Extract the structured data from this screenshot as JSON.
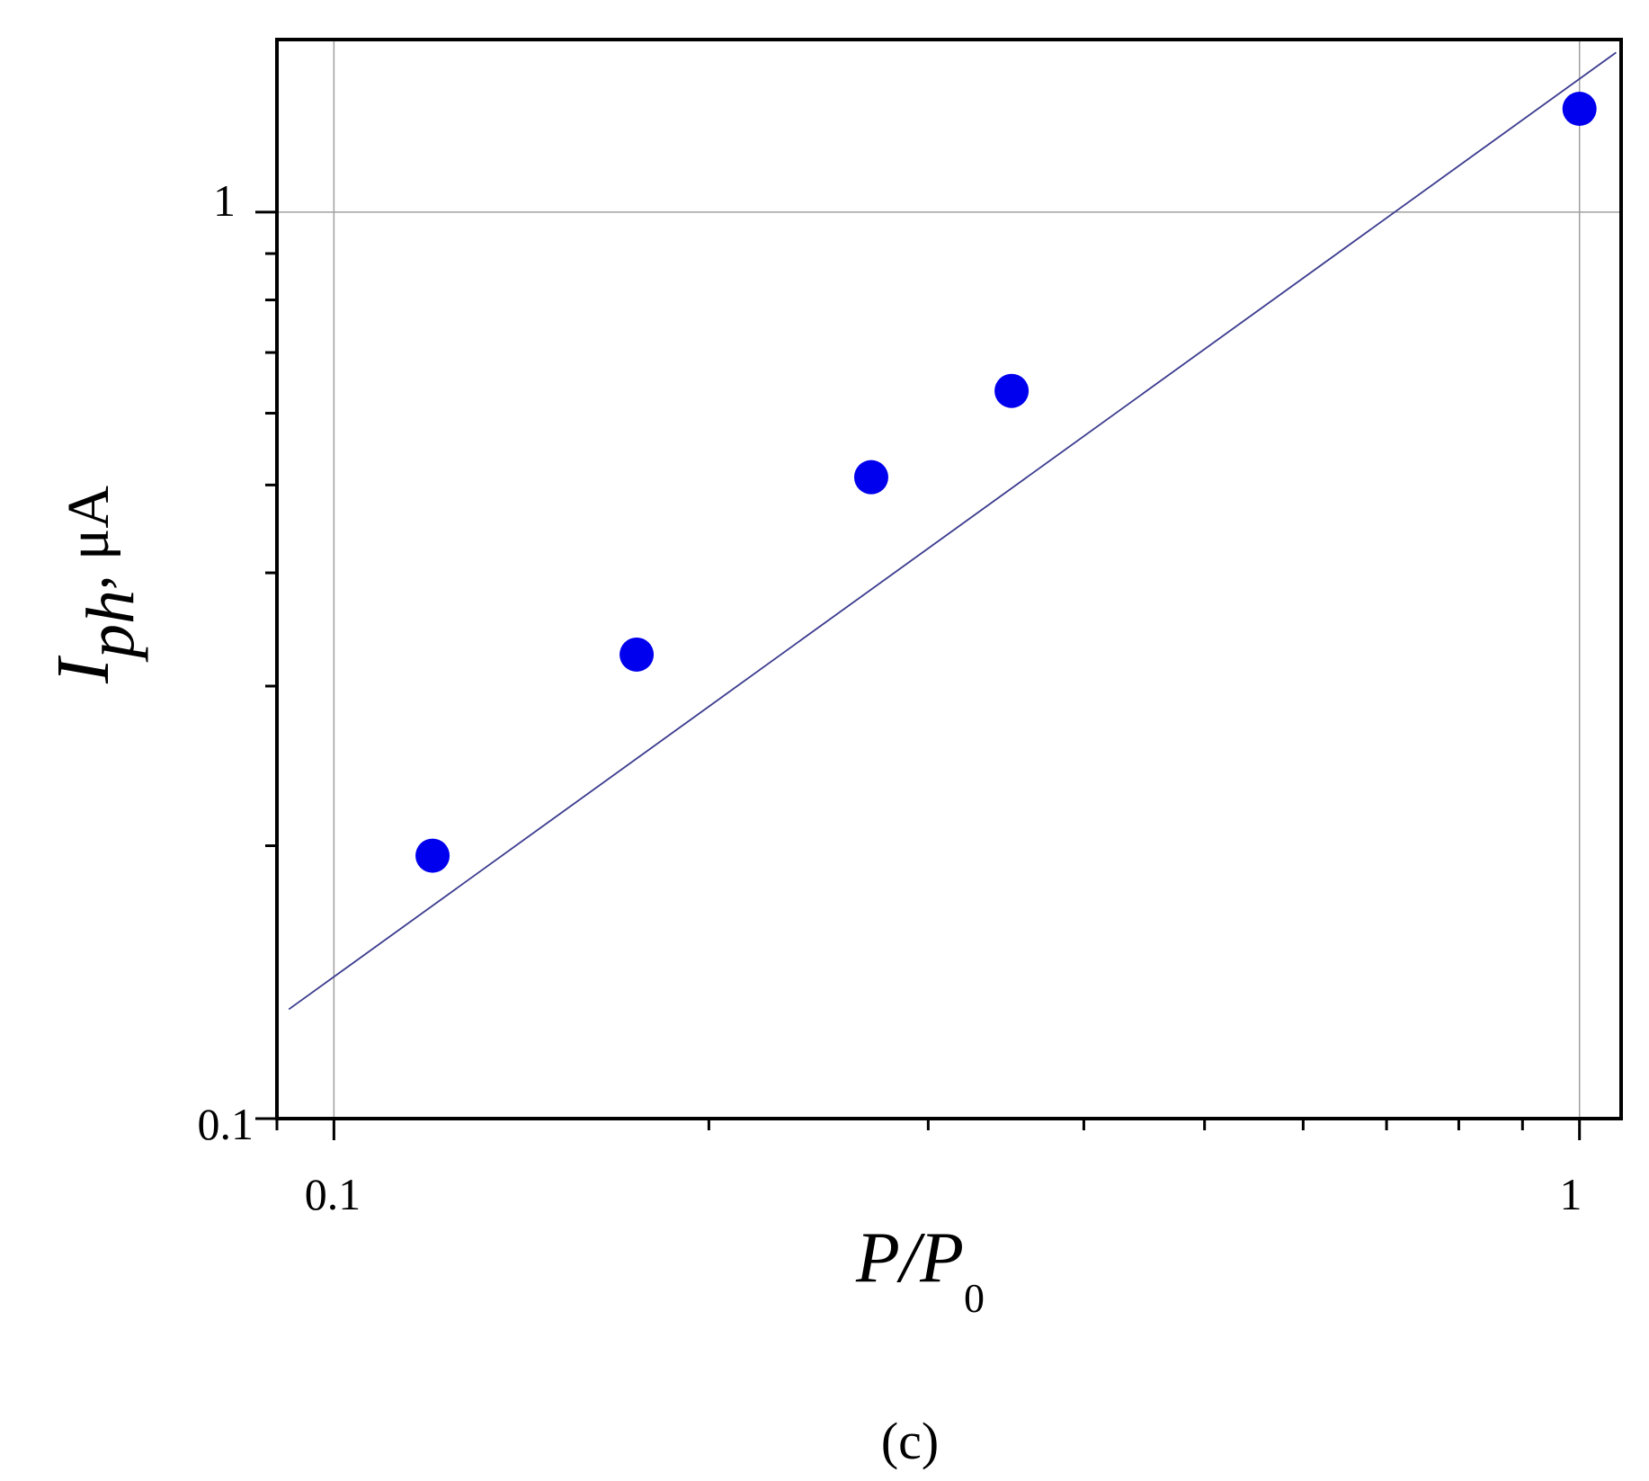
{
  "chart_data": {
    "type": "scatter",
    "x_scale": "log",
    "y_scale": "log",
    "xlim": [
      0.09,
      1.08
    ],
    "ylim": [
      0.1,
      1.55
    ],
    "x_ticks": [
      "0.1",
      "1"
    ],
    "y_ticks": [
      "0.1",
      "1"
    ],
    "grid": "major lines at 0.1 and 1 on both axes",
    "xlabel": {
      "main": "P/P",
      "sub": "0"
    },
    "ylabel": {
      "main": "I",
      "sub": "ph",
      "unit": ", μA"
    },
    "panel_label": "(c)",
    "series": [
      {
        "kind": "markers",
        "color": "#0000ee",
        "points": [
          {
            "x": 0.12,
            "y": 0.195
          },
          {
            "x": 0.175,
            "y": 0.325
          },
          {
            "x": 0.27,
            "y": 0.51
          },
          {
            "x": 0.35,
            "y": 0.635
          },
          {
            "x": 1.0,
            "y": 1.3
          }
        ]
      },
      {
        "kind": "fit-line",
        "color": "#3b3b8f",
        "points": [
          {
            "x": 0.092,
            "y": 0.132
          },
          {
            "x": 1.07,
            "y": 1.5
          }
        ]
      }
    ]
  }
}
